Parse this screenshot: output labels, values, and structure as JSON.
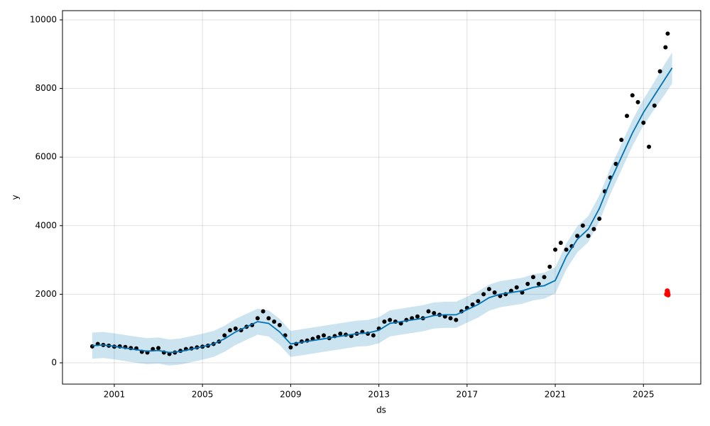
{
  "chart_data": {
    "type": "forecast",
    "xlabel": "ds",
    "ylabel": "y",
    "xlim": [
      1998.65,
      2027.6
    ],
    "ylim": [
      -621,
      10269
    ],
    "xticks": [
      2001,
      2005,
      2009,
      2013,
      2017,
      2021,
      2025
    ],
    "yticks": [
      0,
      2000,
      4000,
      6000,
      8000,
      10000
    ],
    "grid": true,
    "observed": {
      "color": "#000000",
      "x": [
        2000,
        2000.25,
        2000.5,
        2000.75,
        2001,
        2001.25,
        2001.5,
        2001.75,
        2002,
        2002.25,
        2002.5,
        2002.75,
        2003,
        2003.25,
        2003.5,
        2003.75,
        2004,
        2004.25,
        2004.5,
        2004.75,
        2005,
        2005.25,
        2005.5,
        2005.75,
        2006,
        2006.25,
        2006.5,
        2006.75,
        2007,
        2007.25,
        2007.5,
        2007.75,
        2008,
        2008.25,
        2008.5,
        2008.75,
        2009,
        2009.25,
        2009.5,
        2009.75,
        2010,
        2010.25,
        2010.5,
        2010.75,
        2011,
        2011.25,
        2011.5,
        2011.75,
        2012,
        2012.25,
        2012.5,
        2012.75,
        2013,
        2013.25,
        2013.5,
        2013.75,
        2014,
        2014.25,
        2014.5,
        2014.75,
        2015,
        2015.25,
        2015.5,
        2015.75,
        2016,
        2016.25,
        2016.5,
        2016.75,
        2017,
        2017.25,
        2017.5,
        2017.75,
        2018,
        2018.25,
        2018.5,
        2018.75,
        2019,
        2019.25,
        2019.5,
        2019.75,
        2020,
        2020.25,
        2020.5,
        2020.75,
        2021,
        2021.25,
        2021.5,
        2021.75,
        2022,
        2022.25,
        2022.5,
        2022.75,
        2023,
        2023.25,
        2023.5,
        2023.75,
        2024,
        2024.25,
        2024.5,
        2024.75,
        2025,
        2025.25,
        2025.5,
        2025.75,
        2026,
        2026.1
      ],
      "values": [
        480,
        550,
        520,
        500,
        470,
        480,
        460,
        430,
        420,
        320,
        300,
        400,
        430,
        300,
        260,
        300,
        350,
        400,
        420,
        450,
        470,
        500,
        550,
        620,
        800,
        950,
        1000,
        950,
        1050,
        1100,
        1300,
        1500,
        1300,
        1200,
        1100,
        800,
        450,
        550,
        620,
        650,
        700,
        750,
        800,
        720,
        780,
        850,
        820,
        780,
        850,
        900,
        850,
        800,
        1000,
        1200,
        1250,
        1200,
        1150,
        1250,
        1300,
        1350,
        1300,
        1500,
        1450,
        1400,
        1350,
        1300,
        1250,
        1500,
        1600,
        1700,
        1800,
        2000,
        2150,
        2050,
        1950,
        2000,
        2100,
        2200,
        2050,
        2300,
        2500,
        2300,
        2500,
        2800,
        3300,
        3500,
        3300,
        3400,
        3700,
        4000,
        3700,
        3900,
        4200,
        5000,
        5400,
        5800,
        6500,
        7200,
        7800,
        7600,
        7000,
        6300,
        7500,
        8500,
        9200,
        9600
      ]
    },
    "forecast": {
      "color": "#0072B2",
      "x": [
        2000,
        2000.5,
        2001,
        2001.5,
        2002,
        2002.5,
        2003,
        2003.5,
        2004,
        2004.5,
        2005,
        2005.5,
        2006,
        2006.5,
        2007,
        2007.5,
        2008,
        2008.5,
        2009,
        2009.5,
        2010,
        2010.5,
        2011,
        2011.5,
        2012,
        2012.5,
        2013,
        2013.5,
        2014,
        2014.5,
        2015,
        2015.5,
        2016,
        2016.5,
        2017,
        2017.5,
        2018,
        2018.5,
        2019,
        2019.5,
        2020,
        2020.5,
        2021,
        2021.5,
        2022,
        2022.5,
        2023,
        2023.5,
        2024,
        2024.5,
        2025,
        2025.5,
        2026,
        2026.3
      ],
      "yhat": [
        500,
        520,
        480,
        430,
        380,
        340,
        360,
        300,
        330,
        400,
        470,
        550,
        700,
        900,
        1050,
        1200,
        1150,
        900,
        550,
        600,
        650,
        700,
        750,
        800,
        850,
        870,
        950,
        1150,
        1200,
        1250,
        1300,
        1380,
        1400,
        1400,
        1550,
        1700,
        1900,
        2000,
        2050,
        2100,
        2200,
        2250,
        2400,
        3100,
        3600,
        3900,
        4500,
        5300,
        6000,
        6700,
        7300,
        7800,
        8300,
        8600
      ],
      "lower": [
        120,
        140,
        100,
        50,
        0,
        -40,
        -20,
        -80,
        -50,
        20,
        90,
        170,
        320,
        520,
        670,
        820,
        770,
        520,
        170,
        220,
        270,
        320,
        370,
        420,
        470,
        490,
        570,
        770,
        820,
        870,
        920,
        1000,
        1020,
        1020,
        1170,
        1320,
        1520,
        1620,
        1670,
        1720,
        1820,
        1870,
        2020,
        2720,
        3220,
        3520,
        4120,
        4920,
        5620,
        6320,
        6920,
        7400,
        7850,
        8150
      ],
      "upper": [
        880,
        900,
        860,
        810,
        760,
        720,
        740,
        680,
        710,
        780,
        850,
        930,
        1080,
        1280,
        1430,
        1580,
        1530,
        1280,
        930,
        980,
        1030,
        1080,
        1130,
        1180,
        1230,
        1250,
        1330,
        1530,
        1580,
        1630,
        1680,
        1760,
        1780,
        1780,
        1930,
        2080,
        2280,
        2380,
        2430,
        2480,
        2580,
        2630,
        2780,
        3480,
        3980,
        4280,
        4880,
        5680,
        6380,
        7080,
        7680,
        8200,
        8750,
        9050
      ]
    },
    "highlight": {
      "color": "#ff0000",
      "x": [
        2026.05,
        2026.1,
        2026.12,
        2026.08
      ],
      "values": [
        2000,
        2050,
        1980,
        2100
      ]
    }
  }
}
